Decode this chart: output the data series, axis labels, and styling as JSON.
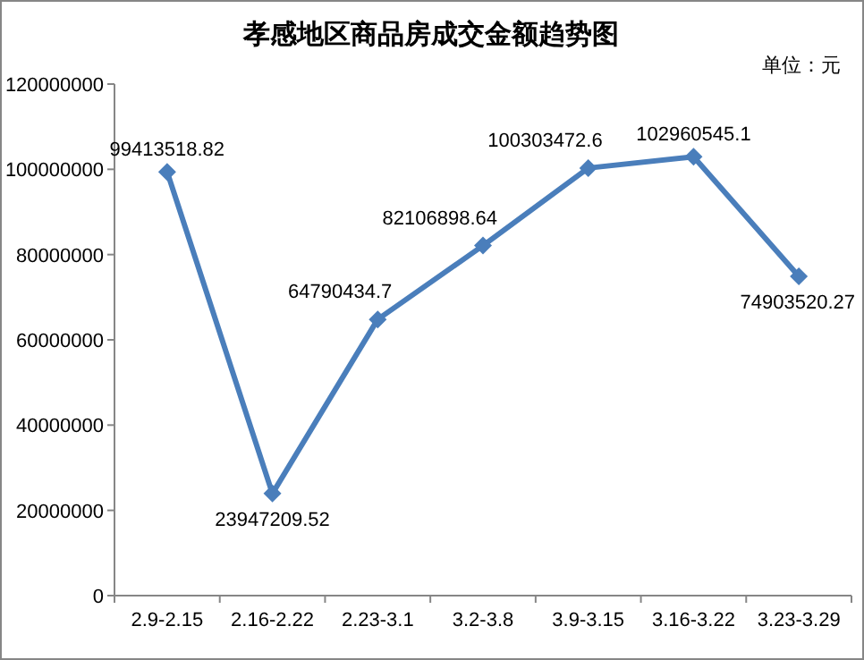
{
  "chart_data": {
    "type": "line",
    "title": "孝感地区商品房成交金额趋势图",
    "annotations": [
      "单位：元"
    ],
    "categories": [
      "2.9-2.15",
      "2.16-2.22",
      "2.23-3.1",
      "3.2-3.8",
      "3.9-3.15",
      "3.16-3.22",
      "3.23-3.29"
    ],
    "series": [
      {
        "color": "#4a7ebb",
        "values": [
          99413518.82,
          23947209.52,
          64790434.7,
          82106898.64,
          100303472.6,
          102960545.1,
          74903520.27
        ]
      }
    ],
    "ylim": [
      0,
      120000000
    ],
    "yticks": [
      0,
      20000000,
      40000000,
      60000000,
      80000000,
      100000000,
      120000000
    ],
    "data_labels": true,
    "marker": "diamond",
    "line_style": "solid",
    "grid": false
  }
}
